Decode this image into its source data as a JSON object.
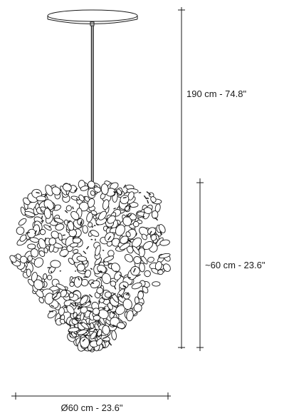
{
  "dimensions": {
    "total_height": "190 cm - 74.8\"",
    "body_height": "~60 cm - 23.6\"",
    "diameter": "Ø60 cm - 23.6\""
  },
  "colors": {
    "line": "#1a1a1a",
    "background": "#ffffff"
  }
}
